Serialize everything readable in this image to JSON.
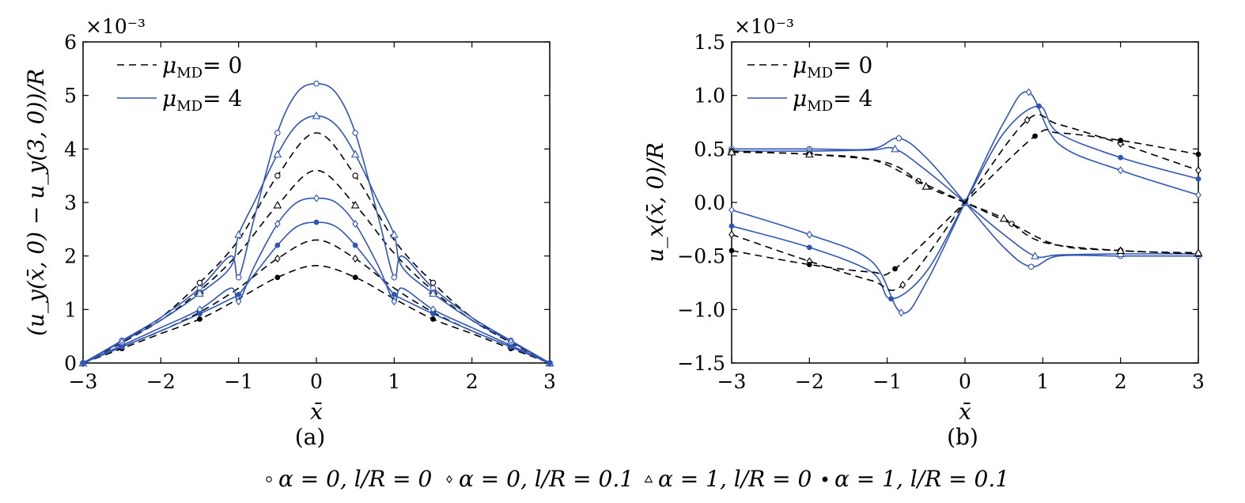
{
  "shared": {
    "line_styles": [
      {
        "label": "μ_MD = 0",
        "style": "dashed",
        "color": "#000000"
      },
      {
        "label": "μ_MD = 4",
        "style": "solid",
        "color": "#2f55b5"
      }
    ],
    "marker_legend": [
      {
        "marker": "circle",
        "label": "α = 0, l/R = 0"
      },
      {
        "marker": "diamond",
        "label": "α = 0, l/R = 0.1"
      },
      {
        "marker": "triangle",
        "label": "α = 1, l/R = 0"
      },
      {
        "marker": "star",
        "label": "α = 1, l/R = 0.1"
      }
    ]
  },
  "chart_data": [
    {
      "type": "line",
      "caption": "(a)",
      "xlabel": "x̄",
      "ylabel": "(u_y(x̄, 0) − u_y(3, 0))/R",
      "y_multiplier": "×10⁻³",
      "xlim": [
        -3,
        3
      ],
      "ylim": [
        0,
        6
      ],
      "xticks": [
        -3,
        -2,
        -1,
        0,
        1,
        2,
        3
      ],
      "xtick_labels": [
        "−3",
        "−2",
        "−1",
        "0",
        "1",
        "2",
        "3"
      ],
      "yticks": [
        0,
        1,
        2,
        3,
        4,
        5,
        6
      ],
      "ytick_labels": [
        "0",
        "1",
        "2",
        "3",
        "4",
        "5",
        "6"
      ],
      "legend_position": "top-left",
      "legend": [
        {
          "label": "μ",
          "sub": "MD",
          "value": "= 0",
          "style": "dashed"
        },
        {
          "label": "μ",
          "sub": "MD",
          "value": "= 4",
          "style": "solid"
        }
      ],
      "series": [
        {
          "marker": "circle",
          "style": "dashed",
          "x": [
            -3,
            -2.5,
            -2,
            -1.5,
            -1,
            -0.5,
            0,
            0.5,
            1,
            1.5,
            2,
            2.5,
            3
          ],
          "y": [
            0,
            0.4,
            0.85,
            1.5,
            2.3,
            3.5,
            4.3,
            3.5,
            2.3,
            1.5,
            0.85,
            0.4,
            0
          ]
        },
        {
          "marker": "triangle",
          "style": "dashed",
          "x": [
            -3,
            -2.5,
            -2,
            -1.5,
            -1,
            -0.5,
            0,
            0.5,
            1,
            1.5,
            2,
            2.5,
            3
          ],
          "y": [
            0,
            0.38,
            0.8,
            1.35,
            2.05,
            2.95,
            3.6,
            2.95,
            2.05,
            1.35,
            0.8,
            0.38,
            0
          ]
        },
        {
          "marker": "diamond",
          "style": "dashed",
          "x": [
            -3,
            -2.5,
            -2,
            -1.5,
            -1,
            -0.5,
            0,
            0.5,
            1,
            1.5,
            2,
            2.5,
            3
          ],
          "y": [
            0,
            0.3,
            0.6,
            0.95,
            1.4,
            1.95,
            2.3,
            1.95,
            1.4,
            0.95,
            0.6,
            0.3,
            0
          ]
        },
        {
          "marker": "star",
          "style": "dashed",
          "x": [
            -3,
            -2.5,
            -2,
            -1.5,
            -1,
            -0.5,
            0,
            0.5,
            1,
            1.5,
            2,
            2.5,
            3
          ],
          "y": [
            0,
            0.27,
            0.55,
            0.82,
            1.2,
            1.6,
            1.82,
            1.6,
            1.2,
            0.82,
            0.55,
            0.27,
            0
          ]
        },
        {
          "marker": "circle",
          "style": "solid",
          "x": [
            -3,
            -2.5,
            -2,
            -1.5,
            -1.1,
            -1.0,
            -0.8,
            -0.5,
            -0.25,
            0,
            0.25,
            0.5,
            0.8,
            1.0,
            1.1,
            1.5,
            2,
            2.5,
            3
          ],
          "y": [
            0,
            0.42,
            0.85,
            1.4,
            2.0,
            1.6,
            2.7,
            4.3,
            5.05,
            5.22,
            5.05,
            4.3,
            2.7,
            1.6,
            2.0,
            1.4,
            0.85,
            0.42,
            0
          ]
        },
        {
          "marker": "triangle",
          "style": "solid",
          "x": [
            -3,
            -2.5,
            -2,
            -1.5,
            -1.1,
            -1.0,
            -0.8,
            -0.5,
            -0.25,
            0,
            0.25,
            0.5,
            0.8,
            1.0,
            1.1,
            1.5,
            2,
            2.5,
            3
          ],
          "y": [
            0,
            0.4,
            0.8,
            1.3,
            1.8,
            2.4,
            3.0,
            3.9,
            4.45,
            4.62,
            4.45,
            3.9,
            3.0,
            2.4,
            1.8,
            1.3,
            0.8,
            0.4,
            0
          ]
        },
        {
          "marker": "diamond",
          "style": "solid",
          "x": [
            -3,
            -2.5,
            -2,
            -1.5,
            -1.1,
            -1.0,
            -0.8,
            -0.5,
            -0.25,
            0,
            0.25,
            0.5,
            0.8,
            1.0,
            1.1,
            1.5,
            2,
            2.5,
            3
          ],
          "y": [
            0,
            0.33,
            0.66,
            1.0,
            1.4,
            1.15,
            1.8,
            2.6,
            3.0,
            3.08,
            3.0,
            2.6,
            1.8,
            1.15,
            1.4,
            1.0,
            0.66,
            0.33,
            0
          ]
        },
        {
          "marker": "star",
          "style": "solid",
          "x": [
            -3,
            -2.5,
            -2,
            -1.5,
            -1.1,
            -1.0,
            -0.8,
            -0.5,
            -0.25,
            0,
            0.25,
            0.5,
            0.8,
            1.0,
            1.1,
            1.5,
            2,
            2.5,
            3
          ],
          "y": [
            0,
            0.3,
            0.6,
            0.92,
            1.2,
            1.28,
            1.65,
            2.2,
            2.55,
            2.63,
            2.55,
            2.2,
            1.65,
            1.28,
            1.2,
            0.92,
            0.6,
            0.3,
            0
          ]
        }
      ]
    },
    {
      "type": "line",
      "caption": "(b)",
      "xlabel": "x̄",
      "ylabel": "u_x(x̄, 0)/R",
      "y_multiplier": "×10⁻³",
      "xlim": [
        -3,
        3
      ],
      "ylim": [
        -1.5,
        1.5
      ],
      "xticks": [
        -3,
        -2,
        -1,
        0,
        1,
        2,
        3
      ],
      "xtick_labels": [
        "−3",
        "−2",
        "−1",
        "0",
        "1",
        "2",
        "3"
      ],
      "yticks": [
        -1.5,
        -1.0,
        -0.5,
        0.0,
        0.5,
        1.0,
        1.5
      ],
      "ytick_labels": [
        "−1.5",
        "−1.0",
        "−0.5",
        "0.0",
        "0.5",
        "1.0",
        "1.5"
      ],
      "legend_position": "top-left",
      "legend": [
        {
          "label": "μ",
          "sub": "MD",
          "value": "= 0",
          "style": "dashed"
        },
        {
          "label": "μ",
          "sub": "MD",
          "value": "= 4",
          "style": "solid"
        }
      ],
      "series": [
        {
          "marker": "circle",
          "style": "solid",
          "x": [
            -3,
            -2,
            -1.2,
            -0.85,
            -0.5,
            0,
            0.5,
            0.85,
            1.2,
            2,
            3
          ],
          "y": [
            0.5,
            0.5,
            0.5,
            0.6,
            0.42,
            0,
            -0.42,
            -0.6,
            -0.5,
            -0.5,
            -0.5
          ]
        },
        {
          "marker": "triangle",
          "style": "solid",
          "x": [
            -3,
            -2,
            -1.2,
            -0.9,
            -0.5,
            0,
            0.5,
            0.9,
            1.2,
            2,
            3
          ],
          "y": [
            0.48,
            0.48,
            0.49,
            0.5,
            0.3,
            0,
            -0.3,
            -0.5,
            -0.49,
            -0.48,
            -0.48
          ]
        },
        {
          "marker": "diamond",
          "style": "solid",
          "x": [
            -3,
            -2,
            -1.2,
            -0.82,
            -0.5,
            0,
            0.5,
            0.82,
            1.2,
            2,
            3
          ],
          "y": [
            -0.07,
            -0.3,
            -0.55,
            -1.03,
            -0.75,
            0,
            0.75,
            1.03,
            0.55,
            0.3,
            0.07
          ]
        },
        {
          "marker": "star",
          "style": "solid",
          "x": [
            -3,
            -2,
            -1.2,
            -0.95,
            -0.5,
            0,
            0.5,
            0.95,
            1.2,
            2,
            3
          ],
          "y": [
            -0.22,
            -0.42,
            -0.65,
            -0.9,
            -0.65,
            0,
            0.65,
            0.9,
            0.65,
            0.42,
            0.22
          ]
        },
        {
          "marker": "circle",
          "style": "dashed",
          "x": [
            -3,
            -2,
            -1.2,
            -0.6,
            0,
            0.6,
            1.2,
            2,
            3
          ],
          "y": [
            0.48,
            0.45,
            0.4,
            0.2,
            0,
            -0.2,
            -0.4,
            -0.45,
            -0.48
          ]
        },
        {
          "marker": "triangle",
          "style": "dashed",
          "x": [
            -3,
            -2,
            -1,
            -0.5,
            0,
            0.5,
            1,
            2,
            3
          ],
          "y": [
            0.47,
            0.45,
            0.37,
            0.15,
            0,
            -0.15,
            -0.37,
            -0.45,
            -0.47
          ]
        },
        {
          "marker": "diamond",
          "style": "dashed",
          "x": [
            -3,
            -2,
            -1.2,
            -0.8,
            0,
            0.8,
            1.2,
            2,
            3
          ],
          "y": [
            -0.3,
            -0.55,
            -0.73,
            -0.77,
            0,
            0.77,
            0.73,
            0.55,
            0.3
          ]
        },
        {
          "marker": "star",
          "style": "dashed",
          "x": [
            -3,
            -2,
            -1.2,
            -0.9,
            0,
            0.9,
            1.2,
            2,
            3
          ],
          "y": [
            -0.45,
            -0.58,
            -0.65,
            -0.62,
            0,
            0.62,
            0.65,
            0.58,
            0.45
          ]
        }
      ]
    }
  ]
}
